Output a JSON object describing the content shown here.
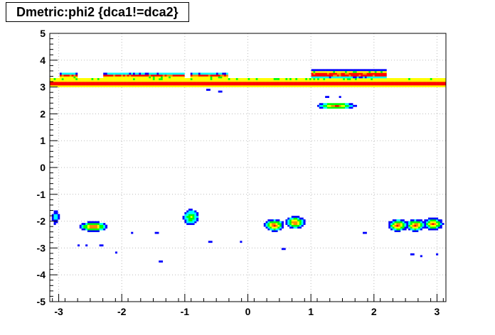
{
  "chart_data": {
    "type": "heatmap",
    "title": "Dmetric:phi2 {dca1!=dca2}",
    "xlabel": "",
    "ylabel": "",
    "xlim": [
      -3.14159,
      3.14159
    ],
    "ylim": [
      -5,
      5
    ],
    "grid": true,
    "x_ticks": [
      -3,
      -2,
      -1,
      0,
      1,
      2,
      3
    ],
    "y_ticks": [
      -5,
      -4,
      -3,
      -2,
      -1,
      0,
      1,
      2,
      3,
      4,
      5
    ],
    "colors": [
      "#0000ff",
      "#00ffff",
      "#00ff00",
      "#ffff00",
      "#ff8800",
      "#ff0000"
    ],
    "bands": [
      {
        "x_range": [
          -3.14,
          3.14
        ],
        "y_range": [
          3.0,
          3.25
        ],
        "level": 5
      },
      {
        "x_range": [
          -3.14,
          3.14
        ],
        "y_range": [
          3.25,
          3.32
        ],
        "level": 3
      },
      {
        "x_range": [
          -3.0,
          -2.7
        ],
        "y_range": [
          3.3,
          3.55
        ],
        "level": 2
      },
      {
        "x_range": [
          -2.3,
          -1.7
        ],
        "y_range": [
          3.3,
          3.55
        ],
        "level": 2
      },
      {
        "x_range": [
          -1.7,
          -1.0
        ],
        "y_range": [
          3.3,
          3.55
        ],
        "level": 2
      },
      {
        "x_range": [
          -0.9,
          -0.3
        ],
        "y_range": [
          3.3,
          3.55
        ],
        "level": 2
      },
      {
        "x_range": [
          1.0,
          2.2
        ],
        "y_range": [
          3.3,
          3.65
        ],
        "level": 2
      }
    ],
    "clusters": [
      {
        "x": 1.4,
        "y": 2.3,
        "rx": 0.3,
        "ry": 0.12,
        "peak": 5
      },
      {
        "x": -2.45,
        "y": -2.2,
        "rx": 0.22,
        "ry": 0.18,
        "peak": 5
      },
      {
        "x": -0.9,
        "y": -1.85,
        "rx": 0.12,
        "ry": 0.28,
        "peak": 3
      },
      {
        "x": 0.42,
        "y": -2.15,
        "rx": 0.15,
        "ry": 0.22,
        "peak": 5
      },
      {
        "x": 0.75,
        "y": -2.05,
        "rx": 0.15,
        "ry": 0.22,
        "peak": 5
      },
      {
        "x": 2.38,
        "y": -2.15,
        "rx": 0.15,
        "ry": 0.22,
        "peak": 5
      },
      {
        "x": 2.66,
        "y": -2.15,
        "rx": 0.15,
        "ry": 0.22,
        "peak": 5
      },
      {
        "x": 2.94,
        "y": -2.1,
        "rx": 0.15,
        "ry": 0.22,
        "peak": 5
      },
      {
        "x": -3.05,
        "y": -1.85,
        "rx": 0.05,
        "ry": 0.25,
        "peak": 1
      }
    ],
    "scatter": [
      {
        "x": -2.7,
        "y": -2.93,
        "level": 0
      },
      {
        "x": -2.55,
        "y": -2.93,
        "level": 0
      },
      {
        "x": -2.35,
        "y": -2.93,
        "level": 0
      },
      {
        "x": -2.1,
        "y": -3.15,
        "level": 0
      },
      {
        "x": -1.85,
        "y": -2.45,
        "level": 0
      },
      {
        "x": -1.45,
        "y": -2.45,
        "level": 0
      },
      {
        "x": -1.4,
        "y": -3.5,
        "level": 0
      },
      {
        "x": -0.6,
        "y": -2.8,
        "level": 0
      },
      {
        "x": -0.1,
        "y": -2.75,
        "level": 0
      },
      {
        "x": 0.55,
        "y": -3.05,
        "level": 0
      },
      {
        "x": 1.85,
        "y": -2.45,
        "level": 0
      },
      {
        "x": 2.6,
        "y": -3.25,
        "level": 0
      },
      {
        "x": 2.75,
        "y": -3.3,
        "level": 0
      },
      {
        "x": 3.0,
        "y": -3.25,
        "level": 0
      },
      {
        "x": -0.65,
        "y": 2.88,
        "level": 0
      },
      {
        "x": -0.45,
        "y": 2.85,
        "level": 0
      },
      {
        "x": 1.25,
        "y": 2.6,
        "level": 0
      },
      {
        "x": 1.45,
        "y": 2.62,
        "level": 0
      }
    ]
  }
}
